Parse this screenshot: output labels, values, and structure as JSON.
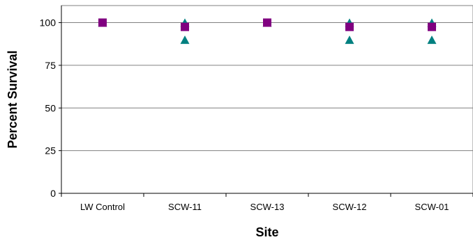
{
  "chart_data": {
    "type": "scatter",
    "title": "",
    "xlabel": "Site",
    "ylabel": "Percent Survival",
    "categories": [
      "LW Control",
      "SCW-11",
      "SCW-13",
      "SCW-12",
      "SCW-01"
    ],
    "ylim": [
      0,
      110
    ],
    "yticks": [
      0,
      25,
      50,
      75,
      100
    ],
    "grid": true,
    "legend": "none",
    "series": [
      {
        "marker": "triangle",
        "color": "#008080",
        "points": [
          {
            "category": "LW Control",
            "y": 100
          },
          {
            "category": "SCW-11",
            "y": 100
          },
          {
            "category": "SCW-11",
            "y": 90
          },
          {
            "category": "SCW-13",
            "y": 100
          },
          {
            "category": "SCW-12",
            "y": 100
          },
          {
            "category": "SCW-12",
            "y": 90
          },
          {
            "category": "SCW-01",
            "y": 100
          },
          {
            "category": "SCW-01",
            "y": 90
          }
        ]
      },
      {
        "marker": "square",
        "color": "#800080",
        "points": [
          {
            "category": "LW Control",
            "y": 100
          },
          {
            "category": "SCW-11",
            "y": 97.5
          },
          {
            "category": "SCW-13",
            "y": 100
          },
          {
            "category": "SCW-12",
            "y": 97.5
          },
          {
            "category": "SCW-01",
            "y": 97.5
          }
        ]
      }
    ]
  }
}
